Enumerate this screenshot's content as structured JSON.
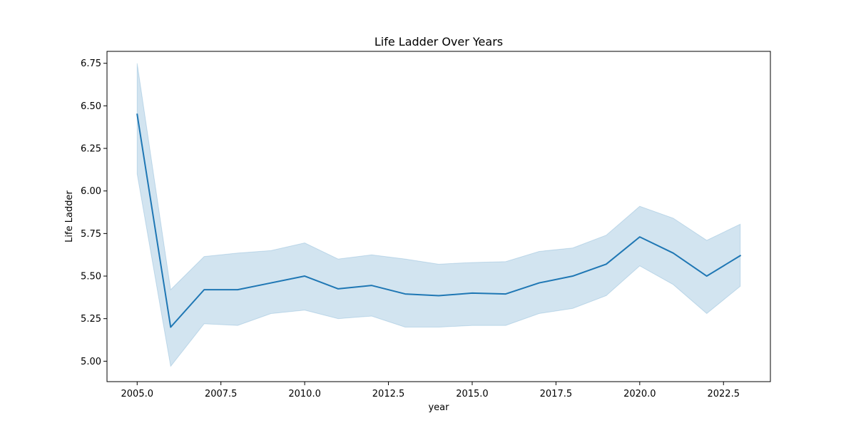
{
  "chart_data": {
    "type": "line",
    "title": "Life Ladder Over Years",
    "xlabel": "year",
    "ylabel": "Life Ladder",
    "xlim": [
      2004.1,
      2023.9
    ],
    "ylim": [
      4.88,
      6.82
    ],
    "x_ticks": [
      2005.0,
      2007.5,
      2010.0,
      2012.5,
      2015.0,
      2017.5,
      2020.0,
      2022.5
    ],
    "x_tick_labels": [
      "2005.0",
      "2007.5",
      "2010.0",
      "2012.5",
      "2015.0",
      "2017.5",
      "2020.0",
      "2022.5"
    ],
    "y_ticks": [
      5.0,
      5.25,
      5.5,
      5.75,
      6.0,
      6.25,
      6.5,
      6.75
    ],
    "y_tick_labels": [
      "5.00",
      "5.25",
      "5.50",
      "5.75",
      "6.00",
      "6.25",
      "6.50",
      "6.75"
    ],
    "grid": false,
    "legend": "none",
    "colors": {
      "line": "#1f77b4",
      "band": "#1f77b4"
    },
    "x": [
      2005,
      2006,
      2007,
      2008,
      2009,
      2010,
      2011,
      2012,
      2013,
      2014,
      2015,
      2016,
      2017,
      2018,
      2019,
      2020,
      2021,
      2022,
      2023
    ],
    "series": [
      {
        "values": [
          6.45,
          5.2,
          5.42,
          5.42,
          5.46,
          5.5,
          5.425,
          5.445,
          5.395,
          5.385,
          5.4,
          5.395,
          5.46,
          5.5,
          5.57,
          5.73,
          5.635,
          5.5,
          5.62
        ],
        "ci_lower": [
          6.1,
          4.97,
          5.22,
          5.21,
          5.28,
          5.3,
          5.25,
          5.265,
          5.2,
          5.2,
          5.21,
          5.21,
          5.28,
          5.31,
          5.385,
          5.56,
          5.45,
          5.28,
          5.44
        ],
        "ci_upper": [
          6.75,
          5.42,
          5.615,
          5.635,
          5.65,
          5.695,
          5.6,
          5.625,
          5.6,
          5.57,
          5.58,
          5.585,
          5.645,
          5.665,
          5.74,
          5.91,
          5.84,
          5.71,
          5.805
        ]
      }
    ]
  }
}
